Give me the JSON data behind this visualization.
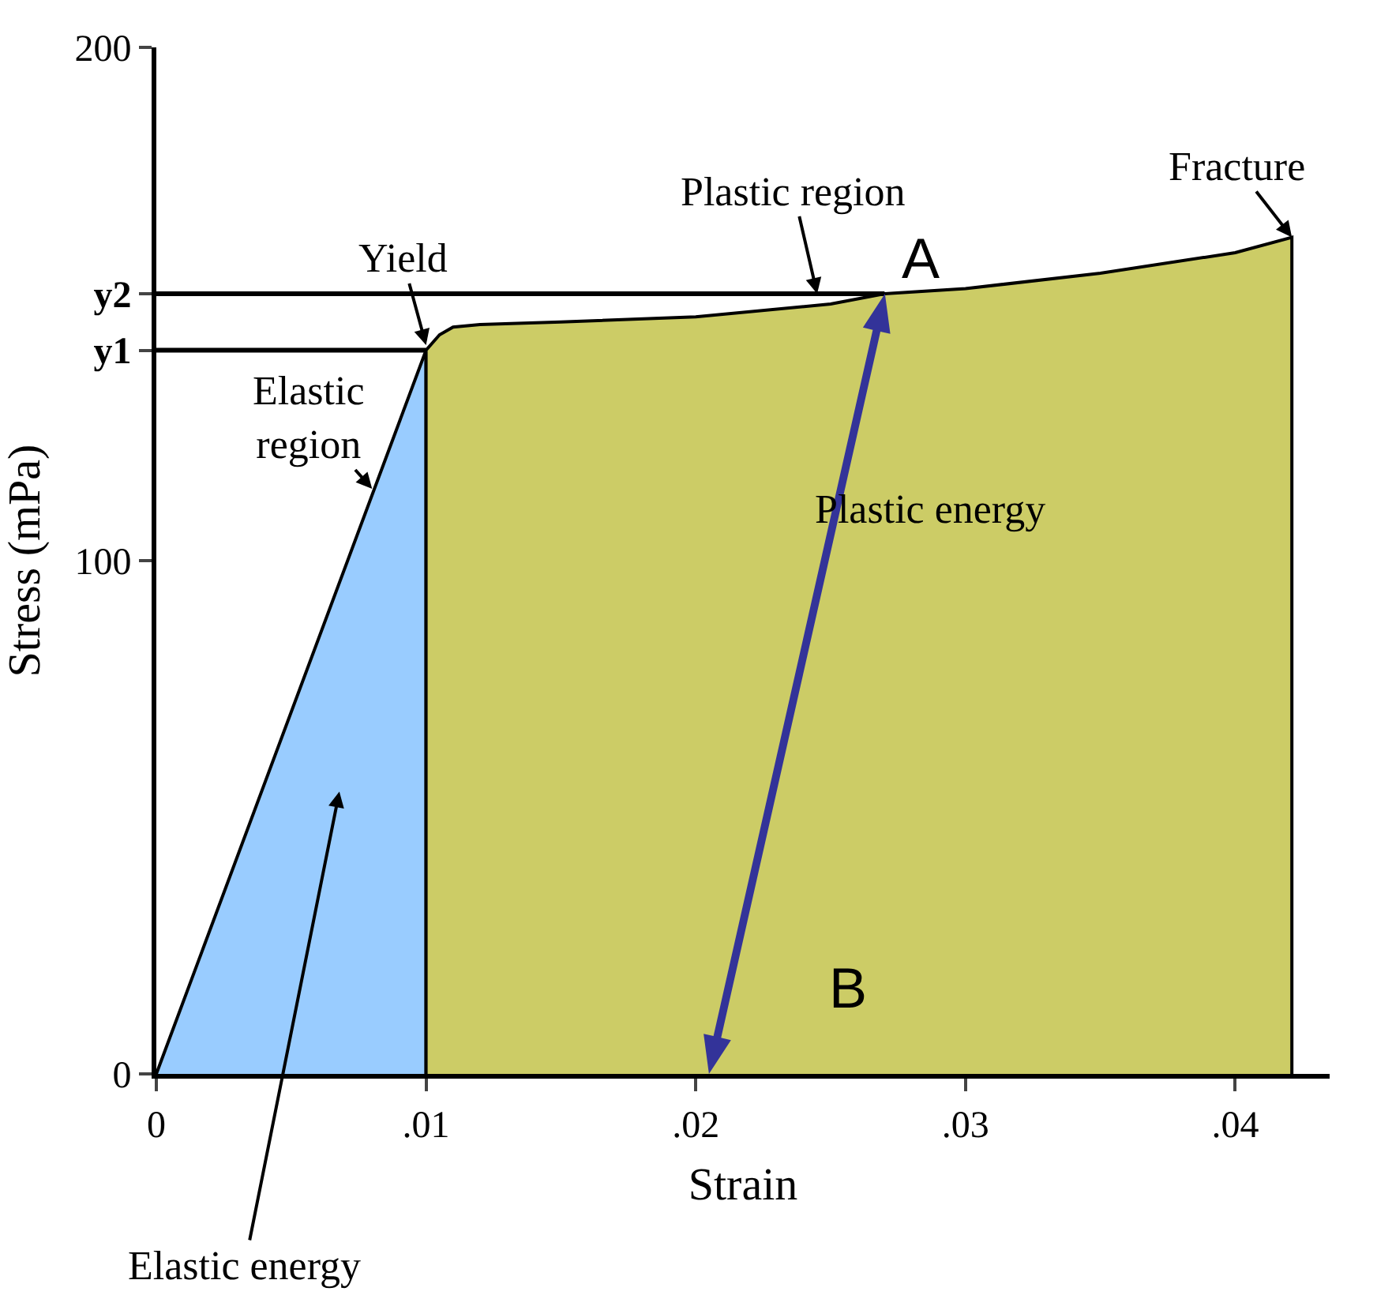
{
  "chart_data": {
    "type": "area",
    "xlabel": "Strain",
    "ylabel": "Stress (mPa)",
    "xlim": [
      0,
      0.0435
    ],
    "ylim": [
      0,
      200
    ],
    "xticks": [
      0,
      {
        "value": 0.01,
        "label": ".01"
      },
      {
        "value": 0.02,
        "label": ".02"
      },
      {
        "value": 0.03,
        "label": ".03"
      },
      {
        "value": 0.04,
        "label": ".04"
      }
    ],
    "yticks": [
      0,
      100,
      200,
      {
        "value": 141,
        "label": "y1"
      },
      {
        "value": 152,
        "label": "y2"
      }
    ],
    "series": [
      {
        "color": "#99ccff",
        "x": [
          0,
          0.01,
          0.01
        ],
        "values": [
          0,
          141,
          0
        ]
      },
      {
        "color": "#cccc66",
        "x": [
          0.01,
          0.01,
          0.0105,
          0.011,
          0.012,
          0.015,
          0.02,
          0.025,
          0.027,
          0.03,
          0.035,
          0.04,
          0.0421,
          0.0421
        ],
        "values": [
          0,
          141,
          144,
          145.5,
          146,
          146.5,
          147.5,
          150,
          152,
          153,
          156,
          160,
          163,
          0
        ]
      },
      {
        "type": "line",
        "color": "#000000",
        "x": [
          0,
          0.01
        ],
        "values": [
          141,
          141
        ]
      },
      {
        "type": "line",
        "color": "#000000",
        "x": [
          0,
          0.027
        ],
        "values": [
          152,
          152
        ]
      }
    ],
    "annotations": [
      {
        "text": "Yield",
        "x": 0.01,
        "y": 142
      },
      {
        "text": "Elastic\nregion",
        "x": 0.008,
        "y": 114
      },
      {
        "text": "Plastic region",
        "x": 0.0245,
        "y": 152
      },
      {
        "text": "Fracture",
        "x": 0.0421,
        "y": 163
      },
      "Elastic energy",
      "Plastic energy",
      "A",
      "B"
    ]
  }
}
